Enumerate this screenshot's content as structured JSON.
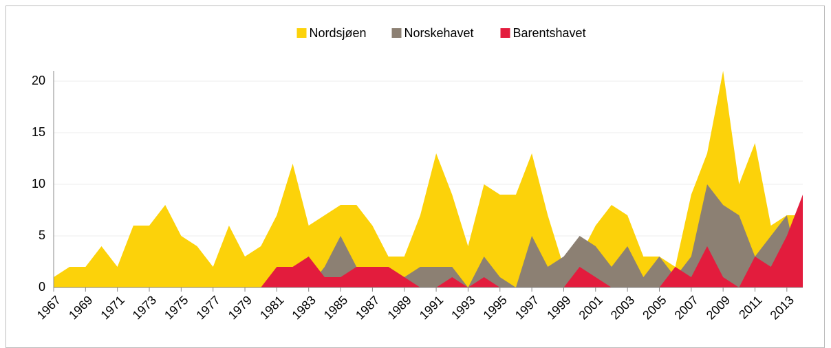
{
  "chart_data": {
    "type": "area",
    "x": [
      1967,
      1968,
      1969,
      1970,
      1971,
      1972,
      1973,
      1974,
      1975,
      1976,
      1977,
      1978,
      1979,
      1980,
      1981,
      1982,
      1983,
      1984,
      1985,
      1986,
      1987,
      1988,
      1989,
      1990,
      1991,
      1992,
      1993,
      1994,
      1995,
      1996,
      1997,
      1998,
      1999,
      2000,
      2001,
      2002,
      2003,
      2004,
      2005,
      2006,
      2007,
      2008,
      2009,
      2010,
      2011,
      2012,
      2013,
      2014
    ],
    "series": [
      {
        "name": "Nordsjøen",
        "color": "#fcd20a",
        "values": [
          1,
          2,
          2,
          4,
          2,
          6,
          6,
          8,
          5,
          4,
          2,
          6,
          3,
          4,
          7,
          12,
          6,
          7,
          8,
          8,
          6,
          3,
          3,
          7,
          13,
          9,
          4,
          10,
          9,
          9,
          13,
          7,
          2,
          3,
          6,
          8,
          7,
          3,
          3,
          2,
          9,
          13,
          21,
          10,
          14,
          6,
          7,
          7
        ]
      },
      {
        "name": "Norskehavet",
        "color": "#8c8073",
        "values": [
          0,
          0,
          0,
          0,
          0,
          0,
          0,
          0,
          0,
          0,
          0,
          0,
          0,
          0,
          0,
          0,
          0,
          2,
          5,
          2,
          2,
          2,
          1,
          2,
          2,
          2,
          0,
          3,
          1,
          0,
          5,
          2,
          3,
          5,
          4,
          2,
          4,
          1,
          3,
          1,
          3,
          10,
          8,
          7,
          3,
          5,
          7,
          0
        ]
      },
      {
        "name": "Barentshavet",
        "color": "#e31c3d",
        "values": [
          0,
          0,
          0,
          0,
          0,
          0,
          0,
          0,
          0,
          0,
          0,
          0,
          0,
          0,
          2,
          2,
          3,
          1,
          1,
          2,
          2,
          2,
          1,
          0,
          0,
          1,
          0,
          1,
          0,
          0,
          0,
          0,
          0,
          2,
          1,
          0,
          0,
          0,
          0,
          2,
          1,
          4,
          1,
          0,
          3,
          2,
          5,
          9
        ]
      }
    ],
    "xlim": [
      1967,
      2014
    ],
    "xticks": [
      1967,
      1969,
      1971,
      1973,
      1975,
      1977,
      1979,
      1981,
      1983,
      1985,
      1987,
      1989,
      1991,
      1993,
      1995,
      1997,
      1999,
      2001,
      2003,
      2005,
      2007,
      2009,
      2011,
      2013
    ],
    "ylim": [
      0,
      21
    ],
    "yticks": [
      0,
      5,
      10,
      15,
      20
    ],
    "grid": true,
    "legend": "top"
  }
}
